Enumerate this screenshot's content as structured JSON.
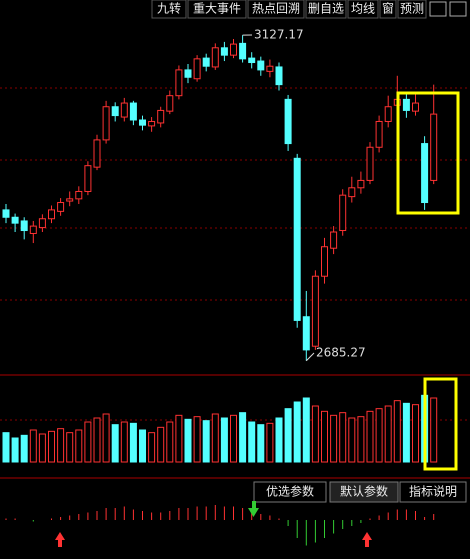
{
  "toolbar": [
    "九转",
    "重大事件",
    "热点回溯",
    "删自选",
    "均线",
    "窗",
    "预测"
  ],
  "tabs": [
    "优选参数",
    "默认参数",
    "指标说明"
  ],
  "chart_data": {
    "type": "candlestick",
    "ylim": [
      2670,
      3145
    ],
    "up_color": "#ff3232",
    "down_color": "#54ffff",
    "open": [
      2890,
      2880,
      2875,
      2858,
      2866,
      2878,
      2888,
      2902,
      2905,
      2915,
      2948,
      2985,
      3030,
      3016,
      3035,
      3012,
      3004,
      3008,
      3024,
      3045,
      3080,
      3068,
      3096,
      3084,
      3110,
      3100,
      3116,
      3096,
      3092,
      3078,
      3084,
      3040,
      2960,
      2745,
      2705,
      2800,
      2838,
      2862,
      2908,
      2920,
      2930,
      2975,
      3010,
      3032,
      3040,
      3024,
      2980,
      2930
    ],
    "high": [
      2898,
      2885,
      2880,
      2875,
      2884,
      2896,
      2906,
      2915,
      2922,
      2956,
      2992,
      3038,
      3036,
      3042,
      3038,
      3018,
      3016,
      3030,
      3052,
      3086,
      3088,
      3100,
      3102,
      3116,
      3118,
      3122,
      3127.17,
      3104,
      3098,
      3094,
      3090,
      3046,
      2966,
      2780,
      2808,
      2852,
      2868,
      2918,
      2935,
      2942,
      2982,
      3018,
      3045,
      3072,
      3050,
      3048,
      2990,
      3060
    ],
    "low": [
      2872,
      2860,
      2850,
      2845,
      2860,
      2872,
      2882,
      2895,
      2898,
      2910,
      2944,
      2980,
      3010,
      3010,
      3005,
      2998,
      2996,
      3002,
      3020,
      3040,
      3062,
      3064,
      3078,
      3080,
      3092,
      3096,
      3090,
      3082,
      3072,
      3070,
      3052,
      2970,
      2730,
      2685.27,
      2700,
      2790,
      2830,
      2855,
      2900,
      2912,
      2925,
      2968,
      3002,
      3020,
      3015,
      3018,
      2890,
      2925
    ],
    "close": [
      2880,
      2872,
      2862,
      2868,
      2878,
      2890,
      2900,
      2905,
      2915,
      2950,
      2985,
      3030,
      3018,
      3035,
      3012,
      3005,
      3010,
      3025,
      3045,
      3080,
      3070,
      3095,
      3085,
      3110,
      3100,
      3115,
      3095,
      3090,
      3080,
      3085,
      3060,
      2980,
      2740,
      2700,
      2800,
      2840,
      2860,
      2910,
      2920,
      2930,
      2975,
      3010,
      3030,
      3040,
      3025,
      3035,
      2900,
      3020
    ],
    "volume": [
      22,
      18,
      20,
      24,
      21,
      23,
      25,
      22,
      24,
      30,
      33,
      36,
      28,
      30,
      29,
      24,
      22,
      26,
      30,
      35,
      32,
      34,
      31,
      36,
      33,
      35,
      37,
      30,
      28,
      29,
      33,
      40,
      45,
      48,
      42,
      38,
      35,
      37,
      33,
      34,
      38,
      40,
      42,
      46,
      44,
      43,
      50,
      48
    ],
    "volume_ylim": [
      0,
      60
    ],
    "macd": [
      1,
      1,
      0,
      -1,
      0,
      1,
      2,
      3,
      4,
      5,
      6,
      8,
      8,
      9,
      7,
      6,
      5,
      5,
      6,
      8,
      8,
      9,
      9,
      10,
      9,
      9,
      8,
      6,
      4,
      3,
      1,
      -4,
      -12,
      -17,
      -15,
      -12,
      -9,
      -6,
      -4,
      -2,
      1,
      3,
      5,
      7,
      7,
      6,
      2,
      4
    ],
    "macd_ylim": [
      -20,
      20
    ]
  }
}
